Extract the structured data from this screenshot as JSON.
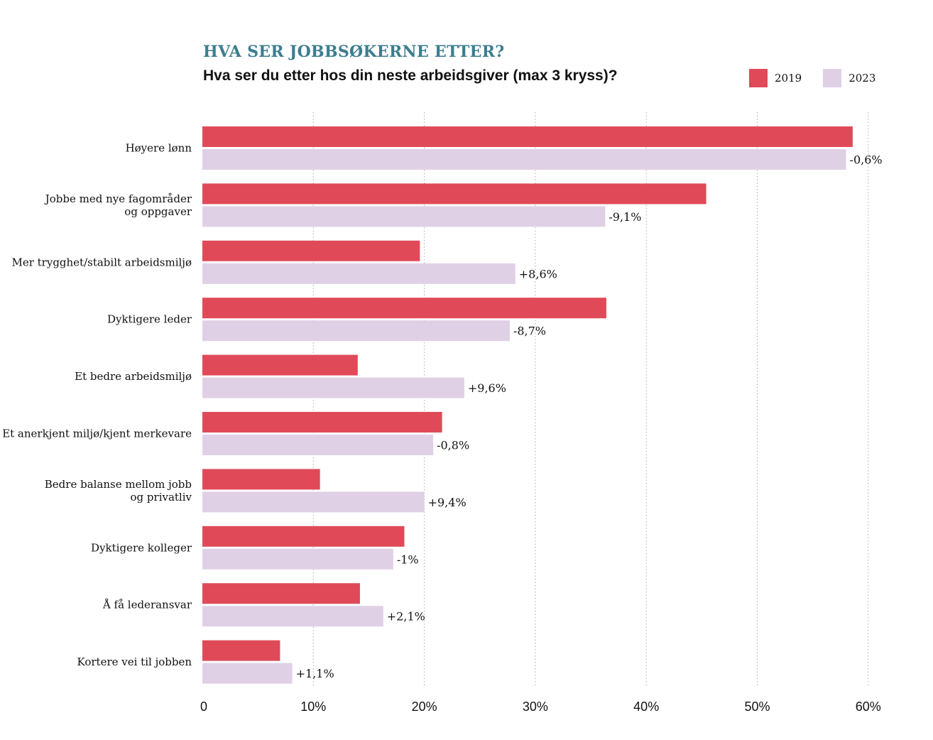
{
  "header": {
    "kicker": "HVA SER JOBBSØKERNE ETTER?",
    "subtitle": "Hva ser du etter hos din neste arbeidsgiver (max 3 kryss)?"
  },
  "colors": {
    "series_2019": "#e04a58",
    "series_2023": "#e0d0e6",
    "kicker": "#3c7d8f",
    "grid": "#aaaaaa"
  },
  "chart_data": {
    "type": "bar",
    "orientation": "horizontal",
    "title": "HVA SER JOBBSØKERNE ETTER?",
    "subtitle": "Hva ser du etter hos din neste arbeidsgiver (max 3 kryss)?",
    "categories": [
      [
        "Høyere lønn"
      ],
      [
        "Jobbe med nye fagområder",
        "og oppgaver"
      ],
      [
        "Mer trygghet/stabilt arbeidsmiljø"
      ],
      [
        "Dyktigere leder"
      ],
      [
        "Et bedre arbeidsmiljø"
      ],
      [
        "Et anerkjent miljø/kjent merkevare"
      ],
      [
        "Bedre balanse mellom jobb",
        "og privatliv"
      ],
      [
        "Dyktigere kolleger"
      ],
      [
        "Å få lederansvar"
      ],
      [
        "Kortere vei til jobben"
      ]
    ],
    "series": [
      {
        "name": "2019",
        "values": [
          58.6,
          45.4,
          19.6,
          36.4,
          14.0,
          21.6,
          10.6,
          18.2,
          14.2,
          7.0
        ]
      },
      {
        "name": "2023",
        "values": [
          58.0,
          36.3,
          28.2,
          27.7,
          23.6,
          20.8,
          20.0,
          17.2,
          16.3,
          8.1
        ]
      }
    ],
    "change_labels": [
      "-0,6%",
      "-9,1%",
      "+8,6%",
      "-8,7%",
      "+9,6%",
      "-0,8%",
      "+9,4%",
      "-1%",
      "+2,1%",
      "+1,1%"
    ],
    "xlim": [
      0,
      60
    ],
    "ticks": [
      0,
      10,
      20,
      30,
      40,
      50,
      60
    ],
    "tick_labels": [
      "0",
      "10%",
      "20%",
      "30%",
      "40%",
      "50%",
      "60%"
    ],
    "grid": "vertical-dotted",
    "legend_position": "top-right"
  }
}
